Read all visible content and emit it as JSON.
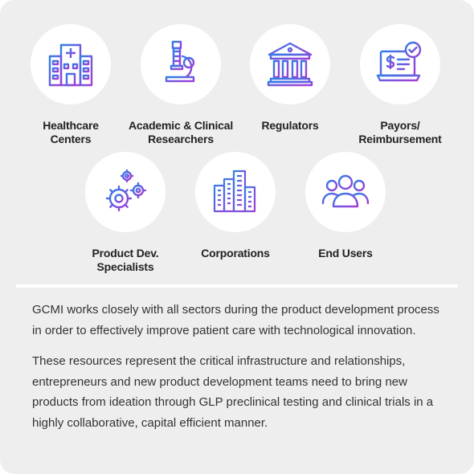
{
  "sectors": [
    {
      "label": "Healthcare\nCenters",
      "icon": "hospital-icon"
    },
    {
      "label": "Academic & Clinical\nResearchers",
      "icon": "microscope-icon"
    },
    {
      "label": "Regulators",
      "icon": "government-building-icon"
    },
    {
      "label": "Payors/\nReimbursement",
      "icon": "payment-laptop-icon"
    },
    {
      "label": "Product Dev.\nSpecialists",
      "icon": "gears-icon"
    },
    {
      "label": "Corporations",
      "icon": "city-buildings-icon"
    },
    {
      "label": "End Users",
      "icon": "users-group-icon"
    }
  ],
  "paragraphs": [
    "GCMI works closely with all sectors during the product development process in order to effectively improve patient care with technological innovation.",
    "These resources represent the critical infrastructure and relationships, entrepreneurs and new product development teams need to bring new products from ideation through GLP preclinical testing and clinical trials in a highly collaborative, capital efficient manner."
  ],
  "colors": {
    "background": "#eeeeee",
    "circle": "#ffffff",
    "gradient_start": "#2f7fe8",
    "gradient_end": "#a33bd6",
    "label_text": "#222222",
    "body_text": "#333333"
  }
}
